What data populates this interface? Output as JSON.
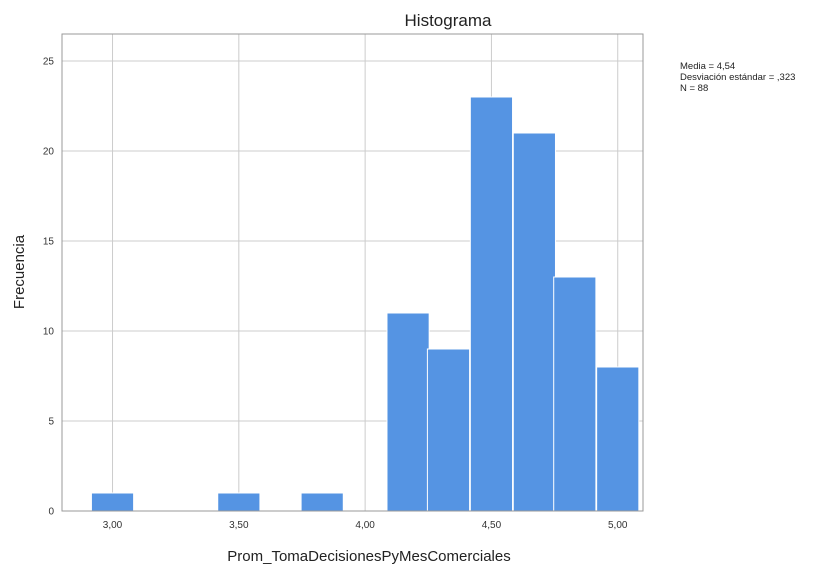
{
  "chart_data": {
    "type": "bar",
    "title": "Histograma",
    "xlabel": "Prom_TomaDecisionesPyMesComerciales",
    "ylabel": "Frecuencia",
    "x_ticks": [
      "3,00",
      "3,50",
      "4,00",
      "4,50",
      "5,00"
    ],
    "x_tick_values": [
      3.0,
      3.5,
      4.0,
      4.5,
      5.0
    ],
    "y_ticks": [
      "0",
      "5",
      "10",
      "15",
      "20",
      "25"
    ],
    "y_tick_values": [
      0,
      5,
      10,
      15,
      20,
      25
    ],
    "xlim": [
      2.8,
      5.1
    ],
    "ylim": [
      0,
      26.5
    ],
    "bin_width": 0.167,
    "bins": [
      {
        "x": 3.0,
        "count": 1
      },
      {
        "x": 3.5,
        "count": 1
      },
      {
        "x": 3.83,
        "count": 1
      },
      {
        "x": 4.17,
        "count": 11
      },
      {
        "x": 4.33,
        "count": 9
      },
      {
        "x": 4.5,
        "count": 23
      },
      {
        "x": 4.67,
        "count": 21
      },
      {
        "x": 4.83,
        "count": 13
      },
      {
        "x": 5.0,
        "count": 8
      }
    ],
    "stats": [
      "Media = 4,54",
      "Desviación estándar = ,323",
      "N = 88"
    ],
    "grid": true,
    "bar_color": "#5594e3"
  }
}
